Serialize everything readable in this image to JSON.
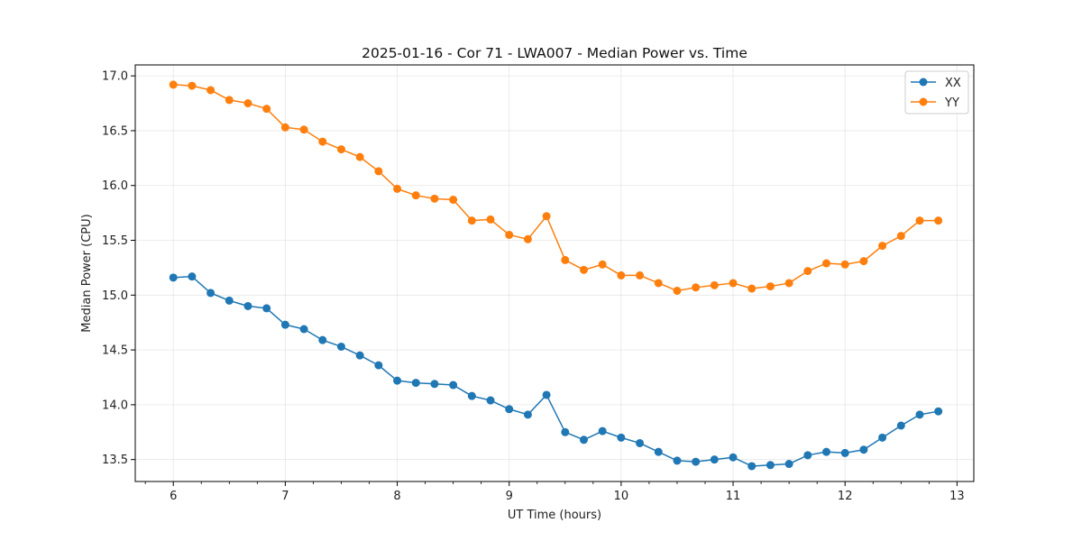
{
  "chart_data": {
    "type": "line",
    "title": "2025-01-16 - Cor 71 - LWA007 - Median Power vs. Time",
    "xlabel": "UT Time (hours)",
    "ylabel": "Median Power (CPU)",
    "xlim": [
      5.66,
      13.15
    ],
    "ylim": [
      13.3,
      17.1
    ],
    "x_ticks": [
      6,
      7,
      8,
      9,
      10,
      11,
      12,
      13
    ],
    "y_ticks": [
      13.5,
      14.0,
      14.5,
      15.0,
      15.5,
      16.0,
      16.5,
      17.0
    ],
    "x_minor_step": 0.25,
    "grid": true,
    "legend_position": "top-right",
    "x": [
      6.0,
      6.1667,
      6.3333,
      6.5,
      6.6667,
      6.8333,
      7.0,
      7.1667,
      7.3333,
      7.5,
      7.6667,
      7.8333,
      8.0,
      8.1667,
      8.3333,
      8.5,
      8.6667,
      8.8333,
      9.0,
      9.1667,
      9.3333,
      9.5,
      9.6667,
      9.8333,
      10.0,
      10.1667,
      10.3333,
      10.5,
      10.6667,
      10.8333,
      11.0,
      11.1667,
      11.3333,
      11.5,
      11.6667,
      11.8333,
      12.0,
      12.1667,
      12.3333,
      12.5,
      12.6667,
      12.8333
    ],
    "series": [
      {
        "name": "XX",
        "color": "#1f77b4",
        "values": [
          15.16,
          15.17,
          15.02,
          14.95,
          14.9,
          14.88,
          14.73,
          14.69,
          14.59,
          14.53,
          14.45,
          14.36,
          14.22,
          14.2,
          14.19,
          14.18,
          14.08,
          14.04,
          13.96,
          13.91,
          14.09,
          13.75,
          13.68,
          13.76,
          13.7,
          13.65,
          13.57,
          13.49,
          13.48,
          13.5,
          13.52,
          13.44,
          13.45,
          13.46,
          13.54,
          13.57,
          13.56,
          13.59,
          13.7,
          13.81,
          13.91,
          13.94
        ]
      },
      {
        "name": "YY",
        "color": "#ff7f0e",
        "values": [
          16.92,
          16.91,
          16.87,
          16.78,
          16.75,
          16.7,
          16.53,
          16.51,
          16.4,
          16.33,
          16.26,
          16.13,
          15.97,
          15.91,
          15.88,
          15.87,
          15.68,
          15.69,
          15.55,
          15.51,
          15.72,
          15.32,
          15.23,
          15.28,
          15.18,
          15.18,
          15.11,
          15.04,
          15.07,
          15.09,
          15.11,
          15.06,
          15.08,
          15.11,
          15.22,
          15.29,
          15.28,
          15.31,
          15.45,
          15.54,
          15.68,
          15.68
        ]
      }
    ]
  }
}
